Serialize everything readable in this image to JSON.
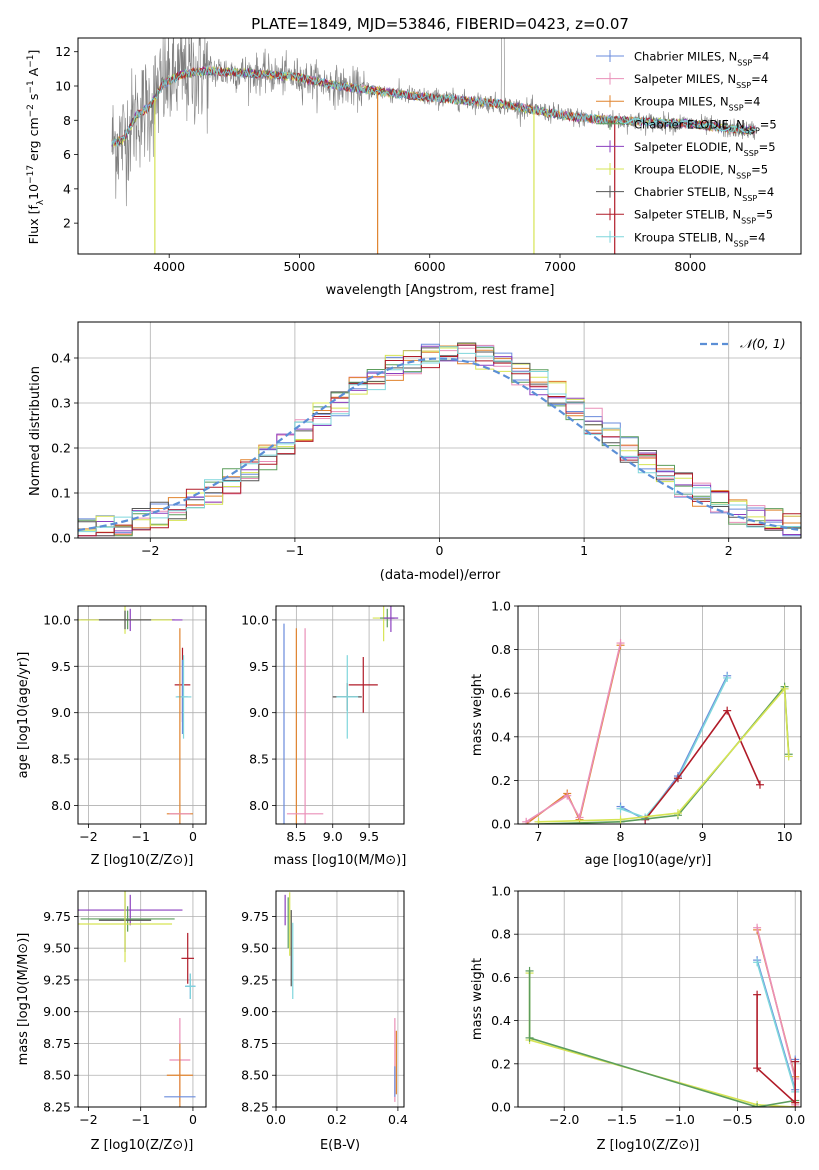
{
  "colors": {
    "chabrier_miles": "#6a8bdc",
    "salpeter_miles": "#ea8fb8",
    "kroupa_miles": "#e0842f",
    "chabrier_elodie": "#5c9d5c",
    "salpeter_elodie": "#8b3fbf",
    "kroupa_elodie": "#d6e454",
    "chabrier_stelib": "#555555",
    "salpeter_stelib": "#b01b28",
    "kroupa_stelib": "#7fd6dc",
    "data_spectrum": "#808080",
    "gaussian": "#5b8fd6"
  },
  "chart_data": [
    {
      "id": "spectrum",
      "type": "line",
      "title": "PLATE=1849, MJD=53846, FIBERID=0423, z=0.07",
      "xlabel": "wavelength [Angstrom, rest frame]",
      "ylabel_parts": [
        "Flux [f",
        "λ",
        "10",
        "−17",
        " erg cm",
        "−2",
        " s",
        "−1",
        " A",
        "−1",
        "]"
      ],
      "xlim": [
        3300,
        8850
      ],
      "ylim": [
        0.2,
        12.8
      ],
      "xticks": [
        4000,
        5000,
        6000,
        7000,
        8000
      ],
      "yticks": [
        2,
        4,
        6,
        8,
        10,
        12
      ],
      "legend_position": "upper right",
      "legend": [
        {
          "key": "chabrier_miles",
          "label": "Chabrier MILES, N",
          "sub": "SSP",
          "suffix": "=4"
        },
        {
          "key": "salpeter_miles",
          "label": "Salpeter MILES, N",
          "sub": "SSP",
          "suffix": "=4"
        },
        {
          "key": "kroupa_miles",
          "label": "Kroupa MILES, N",
          "sub": "SSP",
          "suffix": "=4"
        },
        {
          "key": "chabrier_elodie",
          "label": "Chabrier ELODIE, N",
          "sub": "SSP",
          "suffix": "=5"
        },
        {
          "key": "salpeter_elodie",
          "label": "Salpeter ELODIE, N",
          "sub": "SSP",
          "suffix": "=5"
        },
        {
          "key": "kroupa_elodie",
          "label": "Kroupa ELODIE, N",
          "sub": "SSP",
          "suffix": "=5"
        },
        {
          "key": "chabrier_stelib",
          "label": "Chabrier STELIB, N",
          "sub": "SSP",
          "suffix": "=4"
        },
        {
          "key": "salpeter_stelib",
          "label": "Salpeter STELIB, N",
          "sub": "SSP",
          "suffix": "=5"
        },
        {
          "key": "kroupa_stelib",
          "label": "Kroupa STELIB, N",
          "sub": "SSP",
          "suffix": "=4"
        }
      ],
      "continuum": [
        [
          3550,
          6.6
        ],
        [
          3650,
          6.9
        ],
        [
          3750,
          8.3
        ],
        [
          3850,
          8.8
        ],
        [
          3950,
          10.1
        ],
        [
          4100,
          10.7
        ],
        [
          4300,
          10.9
        ],
        [
          4500,
          10.8
        ],
        [
          4700,
          10.7
        ],
        [
          5000,
          10.5
        ],
        [
          5300,
          10.0
        ],
        [
          5600,
          9.7
        ],
        [
          5900,
          9.4
        ],
        [
          6200,
          9.2
        ],
        [
          6500,
          9.0
        ],
        [
          6800,
          8.6
        ],
        [
          7100,
          8.2
        ],
        [
          7400,
          8.0
        ],
        [
          7700,
          7.9
        ],
        [
          8000,
          7.8
        ],
        [
          8300,
          7.5
        ],
        [
          8500,
          7.4
        ]
      ],
      "model_dropouts": [
        {
          "x": 3890,
          "key": "kroupa_elodie"
        },
        {
          "x": 5600,
          "key": "kroupa_miles"
        },
        {
          "x": 6800,
          "key": "kroupa_elodie"
        },
        {
          "x": 7420,
          "key": "salpeter_stelib"
        }
      ]
    },
    {
      "id": "residuals",
      "type": "histogram",
      "xlabel": "(data-model)/error",
      "ylabel": "Normed distribution",
      "xlim": [
        -2.5,
        2.5
      ],
      "ylim": [
        0,
        0.48
      ],
      "xticks": [
        -2,
        -1,
        0,
        1,
        2
      ],
      "yticks": [
        0.0,
        0.1,
        0.2,
        0.3,
        0.4
      ],
      "legend": [
        {
          "label": "𝒩(0, 1)",
          "key": "gaussian",
          "style": "dashed"
        }
      ],
      "legend_position": "upper right"
    },
    {
      "id": "age_vs_Z",
      "type": "errorbar",
      "xlabel": "Z [log10(Z/Z⊙)]",
      "ylabel": "age  [log10(age/yr)]",
      "xlim": [
        -2.2,
        0.25
      ],
      "ylim": [
        7.8,
        10.15
      ],
      "xticks": [
        -2,
        -1,
        0
      ],
      "yticks": [
        8.0,
        8.5,
        9.0,
        9.5,
        10.0
      ],
      "points": [
        {
          "key": "chabrier_elodie",
          "x": -1.25,
          "y": 10.0,
          "xerr": 0.9,
          "yerr": 0.1
        },
        {
          "key": "salpeter_elodie",
          "x": -1.2,
          "y": 10.0,
          "xerr": 1.0,
          "yerr": 0.12
        },
        {
          "key": "kroupa_elodie",
          "x": -1.3,
          "y": 10.0,
          "xerr": 0.9,
          "yerr": 0.15
        },
        {
          "key": "chabrier_stelib",
          "x": -1.3,
          "y": 10.0,
          "xerr": 0.5,
          "yerr": 0.1
        },
        {
          "key": "salpeter_stelib",
          "x": -0.2,
          "y": 9.3,
          "xerr": 0.15,
          "yerr": 0.4
        },
        {
          "key": "chabrier_miles",
          "x": -0.2,
          "y": 9.17,
          "xerr": 0.1,
          "yerr": 0.4
        },
        {
          "key": "kroupa_stelib",
          "x": -0.18,
          "y": 9.17,
          "xerr": 0.15,
          "yerr": 0.45
        },
        {
          "key": "kroupa_miles",
          "x": -0.25,
          "y": 7.91,
          "xerr": 0.25,
          "yerr": 2.0
        },
        {
          "key": "salpeter_miles",
          "x": -0.25,
          "y": 7.91,
          "xerr": 0.2,
          "yerr": 0.0
        }
      ]
    },
    {
      "id": "age_vs_mass",
      "type": "errorbar",
      "xlabel": "mass [log10(M/M⊙)]",
      "xlim": [
        8.22,
        9.98
      ],
      "ylim": [
        7.8,
        10.15
      ],
      "xticks": [
        8.5,
        9.0,
        9.5
      ],
      "yticks": [
        8.0,
        8.5,
        9.0,
        9.5,
        10.0
      ],
      "points": [
        {
          "key": "chabrier_miles",
          "x": 8.33,
          "y": 7.91,
          "xerr": 0.0,
          "yerr": 2.05
        },
        {
          "key": "kroupa_miles",
          "x": 8.5,
          "y": 7.91,
          "xerr": 0.0,
          "yerr": 2.0
        },
        {
          "key": "salpeter_miles",
          "x": 8.62,
          "y": 7.91,
          "xerr": 0.25,
          "yerr": 2.0
        },
        {
          "key": "chabrier_stelib",
          "x": 9.2,
          "y": 9.17,
          "xerr": 0.2,
          "yerr": 0.15
        },
        {
          "key": "kroupa_stelib",
          "x": 9.2,
          "y": 9.17,
          "xerr": 0.15,
          "yerr": 0.45
        },
        {
          "key": "salpeter_stelib",
          "x": 9.42,
          "y": 9.3,
          "xerr": 0.2,
          "yerr": 0.3
        },
        {
          "key": "kroupa_elodie",
          "x": 9.7,
          "y": 10.02,
          "xerr": 0.15,
          "yerr": 0.25
        },
        {
          "key": "chabrier_elodie",
          "x": 9.75,
          "y": 10.02,
          "xerr": 0.1,
          "yerr": 0.1
        },
        {
          "key": "salpeter_elodie",
          "x": 9.8,
          "y": 10.02,
          "xerr": 0.1,
          "yerr": 0.15
        }
      ]
    },
    {
      "id": "weight_vs_age",
      "type": "line",
      "xlabel": "age  [log10(age/yr)]",
      "ylabel": "mass weight",
      "xlim": [
        6.75,
        10.2
      ],
      "ylim": [
        0,
        1.0
      ],
      "xticks": [
        7,
        8,
        9,
        10
      ],
      "yticks": [
        0.0,
        0.2,
        0.4,
        0.6,
        0.8,
        1.0
      ],
      "series": [
        {
          "key": "kroupa_miles",
          "x": [
            6.85,
            7.35,
            7.5,
            8.0
          ],
          "y": [
            0.0,
            0.14,
            0.02,
            0.82
          ]
        },
        {
          "key": "salpeter_miles",
          "x": [
            6.85,
            7.35,
            7.5,
            8.0
          ],
          "y": [
            0.01,
            0.13,
            0.03,
            0.83
          ]
        },
        {
          "key": "chabrier_miles",
          "x": [
            8.0,
            8.3,
            8.7,
            9.3
          ],
          "y": [
            0.08,
            0.02,
            0.22,
            0.68
          ]
        },
        {
          "key": "kroupa_stelib",
          "x": [
            8.0,
            8.3,
            8.7,
            9.3
          ],
          "y": [
            0.07,
            0.03,
            0.21,
            0.67
          ]
        },
        {
          "key": "salpeter_stelib",
          "x": [
            8.3,
            8.7,
            9.3,
            9.7
          ],
          "y": [
            0.02,
            0.21,
            0.52,
            0.18
          ]
        },
        {
          "key": "chabrier_elodie",
          "x": [
            7.0,
            8.0,
            8.7,
            10.0,
            10.05
          ],
          "y": [
            0.0,
            0.01,
            0.04,
            0.63,
            0.32
          ]
        },
        {
          "key": "kroupa_elodie",
          "x": [
            7.0,
            8.0,
            8.7,
            10.0,
            10.05
          ],
          "y": [
            0.01,
            0.02,
            0.05,
            0.62,
            0.31
          ]
        }
      ]
    },
    {
      "id": "mass_vs_Z",
      "type": "errorbar",
      "xlabel": "Z [log10(Z/Z⊙)]",
      "ylabel": "mass [log10(M/M⊙)]",
      "xlim": [
        -2.2,
        0.25
      ],
      "ylim": [
        8.25,
        9.95
      ],
      "xticks": [
        -2,
        -1,
        0
      ],
      "yticks": [
        8.25,
        8.5,
        8.75,
        9.0,
        9.25,
        9.5,
        9.75
      ],
      "points": [
        {
          "key": "salpeter_elodie",
          "x": -1.2,
          "y": 9.8,
          "xerr": 1.0,
          "yerr": 0.12
        },
        {
          "key": "chabrier_elodie",
          "x": -1.25,
          "y": 9.73,
          "xerr": 0.9,
          "yerr": 0.1
        },
        {
          "key": "chabrier_stelib",
          "x": -1.3,
          "y": 9.72,
          "xerr": 0.5,
          "yerr": 0.25
        },
        {
          "key": "kroupa_elodie",
          "x": -1.3,
          "y": 9.69,
          "xerr": 0.9,
          "yerr": 0.3
        },
        {
          "key": "salpeter_stelib",
          "x": -0.1,
          "y": 9.42,
          "xerr": 0.12,
          "yerr": 0.2
        },
        {
          "key": "chabrier_miles",
          "x": -0.05,
          "y": 9.2,
          "xerr": 0.1,
          "yerr": 0.1
        },
        {
          "key": "kroupa_stelib",
          "x": -0.05,
          "y": 9.2,
          "xerr": 0.1,
          "yerr": 0.1
        },
        {
          "key": "salpeter_miles",
          "x": -0.25,
          "y": 8.62,
          "xerr": 0.2,
          "yerr": 0.33
        },
        {
          "key": "kroupa_miles",
          "x": -0.25,
          "y": 8.5,
          "xerr": 0.25,
          "yerr": 0.25
        },
        {
          "key": "chabrier_miles",
          "x": -0.25,
          "y": 8.33,
          "xerr": 0.3,
          "yerr": 0.0
        }
      ]
    },
    {
      "id": "mass_vs_ebv",
      "type": "errorbar",
      "xlabel": "E(B-V)",
      "xlim": [
        0.0,
        0.42
      ],
      "ylim": [
        8.25,
        9.95
      ],
      "xticks": [
        0.0,
        0.2,
        0.4
      ],
      "yticks": [
        8.25,
        8.5,
        8.75,
        9.0,
        9.25,
        9.5,
        9.75
      ],
      "points": [
        {
          "key": "salpeter_elodie",
          "x": 0.03,
          "y": 9.8,
          "xerr": 0.0,
          "yerr": 0.12
        },
        {
          "key": "chabrier_elodie",
          "x": 0.04,
          "y": 9.7,
          "xerr": 0.0,
          "yerr": 0.2
        },
        {
          "key": "kroupa_elodie",
          "x": 0.045,
          "y": 9.69,
          "xerr": 0.0,
          "yerr": 0.25
        },
        {
          "key": "chabrier_stelib",
          "x": 0.05,
          "y": 9.5,
          "xerr": 0.0,
          "yerr": 0.3
        },
        {
          "key": "kroupa_stelib",
          "x": 0.055,
          "y": 9.4,
          "xerr": 0.0,
          "yerr": 0.3
        },
        {
          "key": "salpeter_miles",
          "x": 0.39,
          "y": 8.62,
          "xerr": 0.0,
          "yerr": 0.33
        },
        {
          "key": "kroupa_miles",
          "x": 0.395,
          "y": 8.6,
          "xerr": 0.0,
          "yerr": 0.25
        },
        {
          "key": "chabrier_miles",
          "x": 0.39,
          "y": 8.45,
          "xerr": 0.0,
          "yerr": 0.12
        }
      ]
    },
    {
      "id": "weight_vs_Z",
      "type": "line",
      "xlabel": "Z [log10(Z/Z⊙)]",
      "ylabel": "mass weight",
      "xlim": [
        -2.4,
        0.05
      ],
      "ylim": [
        0,
        1.0
      ],
      "xticks": [
        -2.0,
        -1.5,
        -1.0,
        -0.5,
        0.0
      ],
      "yticks": [
        0.0,
        0.2,
        0.4,
        0.6,
        0.8,
        1.0
      ],
      "series": [
        {
          "key": "kroupa_elodie",
          "x": [
            -2.3,
            -2.3,
            -0.33,
            0.0,
            0.0
          ],
          "y": [
            0.62,
            0.31,
            0.01,
            0.0,
            0.02
          ]
        },
        {
          "key": "chabrier_elodie",
          "x": [
            -2.3,
            -2.3,
            -0.33,
            0.0
          ],
          "y": [
            0.63,
            0.32,
            0.0,
            0.03
          ]
        },
        {
          "key": "kroupa_miles",
          "x": [
            -0.33,
            0.0,
            0.0
          ],
          "y": [
            0.82,
            0.14,
            0.0
          ]
        },
        {
          "key": "salpeter_miles",
          "x": [
            -0.33,
            0.0,
            0.0
          ],
          "y": [
            0.83,
            0.13,
            0.01
          ]
        },
        {
          "key": "chabrier_miles",
          "x": [
            -0.33,
            0.0,
            0.0
          ],
          "y": [
            0.68,
            0.08,
            0.22
          ]
        },
        {
          "key": "kroupa_stelib",
          "x": [
            -0.33,
            0.0,
            0.0
          ],
          "y": [
            0.67,
            0.07,
            0.21
          ]
        },
        {
          "key": "salpeter_stelib",
          "x": [
            -0.33,
            -0.33,
            0.0,
            0.0
          ],
          "y": [
            0.52,
            0.18,
            0.02,
            0.21
          ]
        }
      ]
    }
  ]
}
